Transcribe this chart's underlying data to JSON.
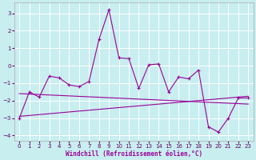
{
  "xlabel": "Windchill (Refroidissement éolien,°C)",
  "bg_color": "#c8eef0",
  "line_color": "#990099",
  "grid_color": "#ffffff",
  "xlim": [
    -0.5,
    23.5
  ],
  "ylim": [
    -4.3,
    3.6
  ],
  "yticks": [
    -4,
    -3,
    -2,
    -1,
    0,
    1,
    2,
    3
  ],
  "xticks": [
    0,
    1,
    2,
    3,
    4,
    5,
    6,
    7,
    8,
    9,
    10,
    11,
    12,
    13,
    14,
    15,
    16,
    17,
    18,
    19,
    20,
    21,
    22,
    23
  ],
  "series1_x": [
    0,
    1,
    2,
    3,
    4,
    5,
    6,
    7,
    8,
    9,
    10,
    11,
    12,
    13,
    14,
    15,
    16,
    17,
    18,
    19,
    20,
    21,
    22,
    23
  ],
  "series1_y": [
    -3.0,
    -1.5,
    -1.8,
    -0.6,
    -0.7,
    -1.1,
    -1.2,
    -0.9,
    1.5,
    3.2,
    0.45,
    0.4,
    -1.3,
    0.05,
    0.1,
    -1.5,
    -0.65,
    -0.75,
    -0.25,
    -3.5,
    -3.8,
    -3.0,
    -1.85,
    -1.85
  ],
  "series2_x": [
    0,
    23
  ],
  "series2_y": [
    -1.6,
    -2.2
  ],
  "series3_x": [
    0,
    23
  ],
  "series3_y": [
    -2.9,
    -1.75
  ]
}
